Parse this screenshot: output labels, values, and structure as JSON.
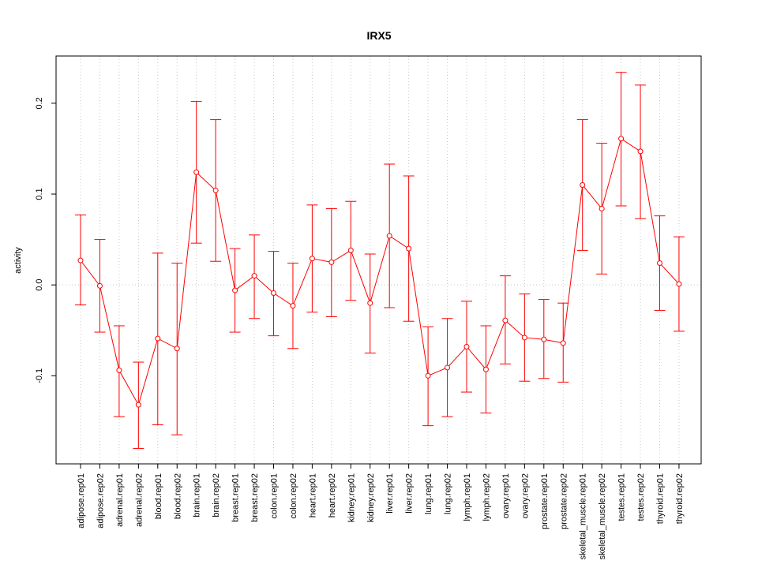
{
  "chart_data": {
    "type": "line",
    "title": "IRX5",
    "xlabel": "",
    "ylabel": "activity",
    "ylim": [
      -0.197,
      0.252
    ],
    "yticks": [
      -0.1,
      0.0,
      0.1,
      0.2
    ],
    "ytick_labels": [
      "-0.1",
      "0.0",
      "0.1",
      "0.2"
    ],
    "grid": true,
    "colors": {
      "series": "#ff0000",
      "grid": "#c8c8c8",
      "axis": "#000000"
    },
    "categories": [
      "adipose.rep01",
      "adipose.rep02",
      "adrenal.rep01",
      "adrenal.rep02",
      "blood.rep01",
      "blood.rep02",
      "brain.rep01",
      "brain.rep02",
      "breast.rep01",
      "breast.rep02",
      "colon.rep01",
      "colon.rep02",
      "heart.rep01",
      "heart.rep02",
      "kidney.rep01",
      "kidney.rep02",
      "liver.rep01",
      "liver.rep02",
      "lung.rep01",
      "lung.rep02",
      "lymph.rep01",
      "lymph.rep02",
      "ovary.rep01",
      "ovary.rep02",
      "prostate.rep01",
      "prostate.rep02",
      "skeletal_muscle.rep01",
      "skeletal_muscle.rep02",
      "testes.rep01",
      "testes.rep02",
      "thyroid.rep01",
      "thyroid.rep02"
    ],
    "series": [
      {
        "values": [
          0.027,
          -0.001,
          -0.094,
          -0.132,
          -0.059,
          -0.07,
          0.124,
          0.104,
          -0.006,
          0.01,
          -0.009,
          -0.023,
          0.029,
          0.025,
          0.038,
          -0.02,
          0.054,
          0.04,
          -0.1,
          -0.091,
          -0.068,
          -0.093,
          -0.039,
          -0.058,
          -0.06,
          -0.064,
          0.11,
          0.084,
          0.161,
          0.147,
          0.024,
          0.001
        ],
        "lower": [
          -0.022,
          -0.052,
          -0.145,
          -0.18,
          -0.154,
          -0.165,
          0.046,
          0.026,
          -0.052,
          -0.037,
          -0.056,
          -0.07,
          -0.03,
          -0.035,
          -0.017,
          -0.075,
          -0.025,
          -0.04,
          -0.155,
          -0.145,
          -0.118,
          -0.141,
          -0.087,
          -0.106,
          -0.103,
          -0.107,
          0.038,
          0.012,
          0.087,
          0.073,
          -0.028,
          -0.051
        ],
        "upper": [
          0.077,
          0.05,
          -0.045,
          -0.085,
          0.035,
          0.024,
          0.202,
          0.182,
          0.04,
          0.055,
          0.037,
          0.024,
          0.088,
          0.084,
          0.092,
          0.034,
          0.133,
          0.12,
          -0.046,
          -0.037,
          -0.018,
          -0.045,
          0.01,
          -0.01,
          -0.016,
          -0.02,
          0.182,
          0.156,
          0.234,
          0.22,
          0.076,
          0.053
        ]
      }
    ]
  }
}
